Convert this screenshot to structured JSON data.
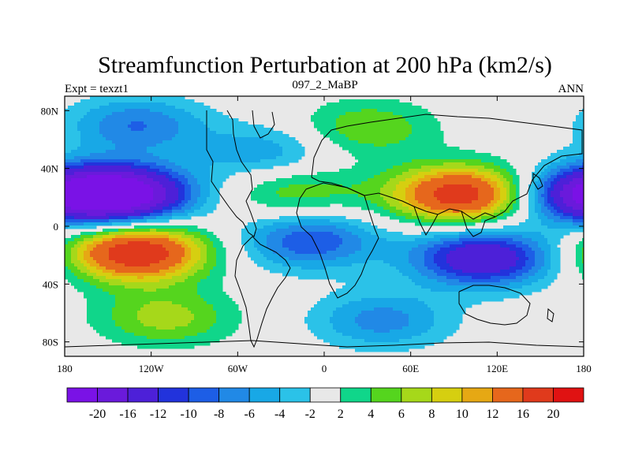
{
  "chart_data": {
    "type": "heatmap",
    "title": "Streamfunction Perturbation at 200 hPa (km2/s)",
    "subtitle_left": "Expt = texzt1",
    "subtitle_center": "097_2_MaBP",
    "subtitle_right": "ANN",
    "x_ticks": [
      {
        "value": -180,
        "label": "180"
      },
      {
        "value": -120,
        "label": "120W"
      },
      {
        "value": -60,
        "label": "60W"
      },
      {
        "value": 0,
        "label": "0"
      },
      {
        "value": 60,
        "label": "60E"
      },
      {
        "value": 120,
        "label": "120E"
      },
      {
        "value": 180,
        "label": "180"
      }
    ],
    "y_ticks": [
      {
        "value": 80,
        "label": "80N"
      },
      {
        "value": 40,
        "label": "40N"
      },
      {
        "value": 0,
        "label": "0"
      },
      {
        "value": -40,
        "label": "40S"
      },
      {
        "value": -80,
        "label": "80S"
      }
    ],
    "xlim": [
      -180,
      180
    ],
    "ylim": [
      -90,
      90
    ],
    "colorbar": {
      "levels": [
        "-20",
        "-16",
        "-12",
        "-10",
        "-8",
        "-6",
        "-4",
        "-2",
        "2",
        "4",
        "6",
        "8",
        "10",
        "12",
        "16",
        "20"
      ],
      "colors": [
        "#7a12e6",
        "#6a1adb",
        "#4d20d8",
        "#2233dc",
        "#1d5ee6",
        "#2189e6",
        "#18a8e6",
        "#2bc2e8",
        "#e8e8e8",
        "#10d68a",
        "#55d51e",
        "#a6d81a",
        "#d6cf10",
        "#e6a814",
        "#e6671c",
        "#e03a1c",
        "#e01212"
      ]
    },
    "features": [
      {
        "name": "negative-north-pacific",
        "lon": -140,
        "lat": 22,
        "peak": -22
      },
      {
        "name": "positive-south-pacific",
        "lon": -130,
        "lat": -18,
        "peak": 20
      },
      {
        "name": "positive-asia",
        "lon": 95,
        "lat": 22,
        "peak": 19
      },
      {
        "name": "negative-indian-ocean",
        "lon": 110,
        "lat": -22,
        "peak": -16
      },
      {
        "name": "negative-east-edge",
        "lon": 180,
        "lat": 22,
        "peak": -14
      },
      {
        "name": "positive-southern-ocean",
        "lon": -110,
        "lat": -63,
        "peak": 7
      },
      {
        "name": "negative-southern-atlantic",
        "lon": 40,
        "lat": -65,
        "peak": -7
      },
      {
        "name": "negative-north-high-lat",
        "lon": -130,
        "lat": 70,
        "peak": -8
      },
      {
        "name": "positive-north-atlantic",
        "lon": 30,
        "lat": 68,
        "peak": 6
      },
      {
        "name": "positive-atlantic-tropic",
        "lon": -20,
        "lat": 25,
        "peak": 6
      },
      {
        "name": "negative-atlantic-equator",
        "lon": -10,
        "lat": -10,
        "peak": -10
      },
      {
        "name": "negative-north-atlantic-mid",
        "lon": -40,
        "lat": 50,
        "peak": -6
      }
    ]
  }
}
